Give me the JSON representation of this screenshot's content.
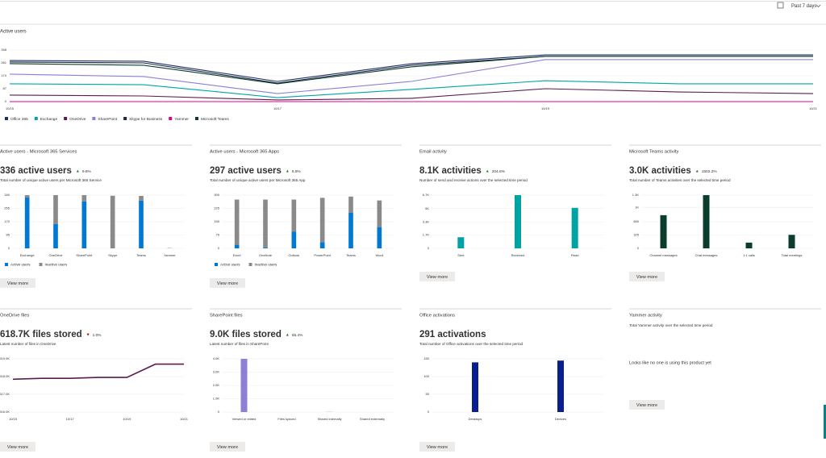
{
  "header": {
    "period": "Past 7 days"
  },
  "active_users": {
    "type": "line",
    "title": "Active users",
    "categories": [
      "10/15",
      null,
      "10/17",
      null,
      "10/19",
      null,
      "10/21"
    ],
    "ylim": [
      0,
      348
    ],
    "yticks": [
      0,
      87,
      174,
      261,
      348
    ],
    "grid": true,
    "series": [
      {
        "name": "Office 365",
        "color": "#1f2d6e",
        "values": [
          277,
          272,
          136,
          255,
          315,
          315,
          315
        ]
      },
      {
        "name": "Exchange",
        "color": "#00a5a5",
        "values": [
          120,
          114,
          27,
          82,
          141,
          120,
          120
        ]
      },
      {
        "name": "OneDrive",
        "color": "#5c1c4e",
        "values": [
          44,
          38,
          11,
          22,
          87,
          65,
          54
        ]
      },
      {
        "name": "SharePoint",
        "color": "#8c7fd6",
        "values": [
          185,
          169,
          54,
          136,
          283,
          283,
          283
        ]
      },
      {
        "name": "Skype for Business",
        "color": "#1b2a3a",
        "values": [
          267,
          261,
          125,
          245,
          305,
          305,
          305
        ]
      },
      {
        "name": "Yammer",
        "color": "#e3008c",
        "values": [
          0,
          0,
          0,
          0,
          0,
          0,
          0
        ]
      },
      {
        "name": "Microsoft Teams",
        "color": "#0b3d2e",
        "values": [
          256,
          245,
          120,
          234,
          305,
          305,
          305
        ]
      }
    ]
  },
  "cards": [
    {
      "title": "Active users - Microsoft 365 Services",
      "headline": "336 active users",
      "trend": "▲",
      "trend_color": "#107c10",
      "change": "9.8%",
      "description": "Total number of unique active users per Microsoft 365 Service",
      "button": "View more",
      "chart": {
        "type": "bar",
        "categories": [
          "Exchange",
          "OneDrive",
          "SharePoint",
          "Skype",
          "Teams",
          "Yammer"
        ],
        "ylim": [
          0,
          340
        ],
        "yticks": [
          0,
          85,
          170,
          255,
          340
        ],
        "grid": true,
        "series": [
          {
            "name": "Active users",
            "color": "#0078d4",
            "values": [
              325,
              155,
              300,
              0,
              305,
              0
            ]
          },
          {
            "name": "Inactive users",
            "color": "#8a8a8a",
            "values": [
              15,
              185,
              40,
              336,
              30,
              2
            ]
          }
        ]
      }
    },
    {
      "title": "Active users - Microsoft 365 Apps",
      "headline": "297 active users",
      "trend": "▲",
      "trend_color": "#107c10",
      "change": "6.8%",
      "description": "Total number of unique active users per Microsoft 365 App",
      "button": "View more",
      "chart": {
        "type": "bar",
        "categories": [
          "Excel",
          "OneNote",
          "Outlook",
          "PowerPoint",
          "Teams",
          "Word"
        ],
        "ylim": [
          0,
          300
        ],
        "yticks": [
          0,
          75,
          150,
          225,
          300
        ],
        "grid": true,
        "series": [
          {
            "name": "Active users",
            "color": "#0078d4",
            "values": [
              20,
              5,
              95,
              35,
              200,
              120
            ]
          },
          {
            "name": "Inactive users",
            "color": "#8a8a8a",
            "values": [
              255,
              270,
              180,
              250,
              92,
              150
            ]
          }
        ]
      }
    },
    {
      "title": "Email activity",
      "headline": "8.1K activities",
      "trend": "▲",
      "trend_color": "#107c10",
      "change": "204.8%",
      "description": "Number of send and receive actions over the selected time period",
      "button": "View more",
      "chart": {
        "type": "bar",
        "categories": [
          "Sent",
          "Received",
          "Read"
        ],
        "color": "#00a3a3",
        "ylim": [
          0,
          6700
        ],
        "yticks": [
          0,
          {
            "value": 1700,
            "label": "1.7K"
          },
          {
            "value": 3300,
            "label": "3.3K"
          },
          {
            "value": 5000,
            "label": "5K"
          },
          {
            "value": 6700,
            "label": "6.7K"
          }
        ],
        "grid": true,
        "values": [
          1400,
          6700,
          5100
        ]
      }
    },
    {
      "title": "Microsoft Teams activity",
      "headline": "3.0K activities",
      "trend": "▲",
      "trend_color": "#107c10",
      "change": "1502.2%",
      "description": "Total number of Teams activities over the selected time period",
      "button": "View more",
      "chart": {
        "type": "bar",
        "categories": [
          "Channel messages",
          "Chat messages",
          "1:1 calls",
          "Total meetings"
        ],
        "color": "#0b3d2e",
        "ylim": [
          0,
          1300
        ],
        "yticks": [
          0,
          325,
          650,
          {
            "value": 1000,
            "label": "1K"
          },
          {
            "value": 1300,
            "label": "1.3K"
          }
        ],
        "grid": true,
        "values": [
          810,
          1300,
          140,
          330
        ]
      }
    },
    {
      "title": "OneDrive files",
      "headline": "618.7K files stored",
      "trend": "▼",
      "trend_color": "#a80000",
      "change": "1.0%",
      "description": "Latest number of files in OneDrive",
      "button": "View more",
      "chart": {
        "type": "line",
        "categories": [
          "10/15",
          null,
          "10/17",
          null,
          "10/19",
          null,
          "10/21"
        ],
        "ylim": [
          616000,
          619000
        ],
        "yticks": [
          {
            "value": 616000,
            "label": "616.0K"
          },
          {
            "value": 617000,
            "label": "617.0K"
          },
          {
            "value": 618000,
            "label": "618.0K"
          },
          {
            "value": 619000,
            "label": "619.0K"
          }
        ],
        "grid": true,
        "series": [
          {
            "color": "#5c1c4e",
            "values": [
              617850,
              617900,
              617900,
              617950,
              617950,
              618700,
              618700
            ]
          }
        ]
      }
    },
    {
      "title": "SharePoint files",
      "headline": "9.0K files stored",
      "trend": "▲",
      "trend_color": "#107c10",
      "change": "66.4%",
      "description": "Latest number of files in SharePoint",
      "button": "View more",
      "chart": {
        "type": "bar",
        "categories": [
          "Viewed or edited",
          "Files synced",
          "Shared internally",
          "Shared externally"
        ],
        "color": "#8c7fd6",
        "ylim": [
          0,
          4000
        ],
        "yticks": [
          0,
          {
            "value": 1000,
            "label": "1.0K"
          },
          {
            "value": 2000,
            "label": "2.0K"
          },
          {
            "value": 3000,
            "label": "3.0K"
          },
          {
            "value": 4000,
            "label": "4.0K"
          }
        ],
        "grid": true,
        "values": [
          4000,
          0,
          10,
          0
        ]
      }
    },
    {
      "title": "Office activations",
      "headline": "291 activations",
      "description": "Total number of Office activations over the selected time period",
      "button": "View more",
      "chart": {
        "type": "bar",
        "categories": [
          "Desktops",
          "Devices"
        ],
        "color": "#0a1f8f",
        "ylim": [
          0,
          150
        ],
        "yticks": [
          0,
          50,
          100,
          150
        ],
        "grid": true,
        "values": [
          140,
          145
        ]
      }
    },
    {
      "title": "Yammer activity",
      "description": "Total Yammer activity over the selected time period",
      "message": "Looks like no one is using this product yet",
      "button": "View more"
    }
  ]
}
